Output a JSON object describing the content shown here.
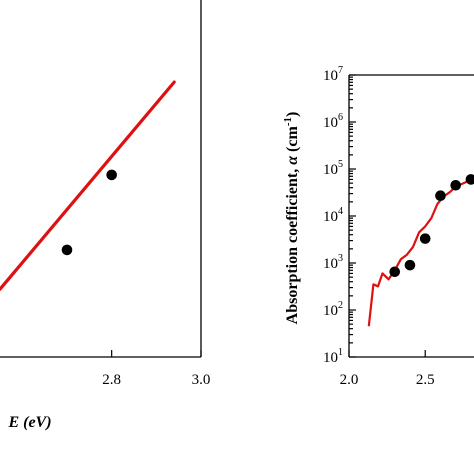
{
  "chart_data": [
    {
      "type": "scatter",
      "panel": "left",
      "xlabel": "E (eV)",
      "ylabel": "",
      "xlim": [
        2.55,
        3.0
      ],
      "ylim": [
        0,
        1
      ],
      "x_ticks": [
        2.8,
        3.0
      ],
      "x_tick_labels": [
        "2.8",
        "3.0"
      ],
      "series": [
        {
          "kind": "points",
          "x": [
            2.7,
            2.8
          ],
          "y": [
            0.3,
            0.51
          ]
        },
        {
          "kind": "fit-line",
          "x": [
            2.55,
            2.94
          ],
          "y": [
            0.19,
            0.77
          ]
        }
      ],
      "colors": {
        "line": "#dd1111",
        "points": "#000000"
      }
    },
    {
      "type": "scatter",
      "panel": "right",
      "xlabel": "",
      "ylabel": "Absorption coefficient, α (cm-1)",
      "ylabel_parts": {
        "main": "Absorption coefficient, ",
        "symbol": "α",
        "unit": " (cm",
        "exp": "-1",
        "close": ")"
      },
      "xlim": [
        2.0,
        2.82
      ],
      "ylim_log10": [
        1,
        7
      ],
      "y_scale": "log",
      "x_ticks": [
        2.0,
        2.5
      ],
      "x_tick_labels": [
        "2.0",
        "2.5"
      ],
      "y_tick_labels": [
        {
          "base": "10",
          "exp": "1"
        },
        {
          "base": "10",
          "exp": "2"
        },
        {
          "base": "10",
          "exp": "3"
        },
        {
          "base": "10",
          "exp": "4"
        },
        {
          "base": "10",
          "exp": "5"
        },
        {
          "base": "10",
          "exp": "6"
        },
        {
          "base": "10",
          "exp": "7"
        }
      ],
      "series": [
        {
          "kind": "points",
          "x": [
            2.3,
            2.4,
            2.5,
            2.6,
            2.7,
            2.8
          ],
          "y": [
            650,
            900,
            3300,
            27000,
            45000,
            60000
          ]
        },
        {
          "kind": "line",
          "x": [
            2.13,
            2.16,
            2.19,
            2.22,
            2.26,
            2.3,
            2.34,
            2.38,
            2.42,
            2.46,
            2.5,
            2.54,
            2.58,
            2.62,
            2.66,
            2.7,
            2.74,
            2.78,
            2.82
          ],
          "y": [
            45,
            350,
            320,
            600,
            450,
            700,
            1200,
            1500,
            2200,
            4500,
            6000,
            9000,
            18000,
            26000,
            32000,
            42000,
            48000,
            55000,
            62000
          ]
        }
      ],
      "colors": {
        "line": "#dd1111",
        "points": "#000000"
      }
    }
  ]
}
